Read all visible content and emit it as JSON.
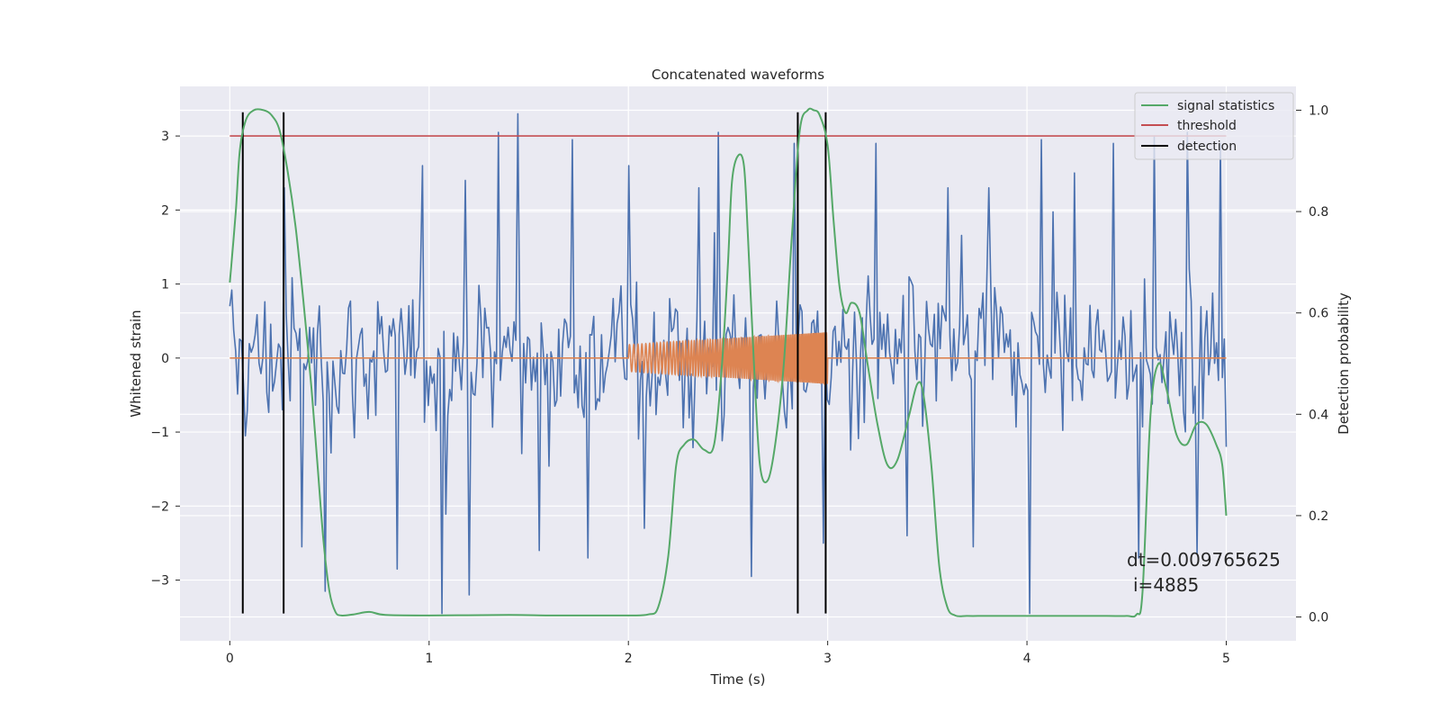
{
  "chart_data": {
    "type": "line",
    "title": "Concatenated waveforms",
    "xlabel": "Time (s)",
    "ylabel": "Whitened strain",
    "y2label": "Detection probability",
    "xlim": [
      -0.25,
      5.35
    ],
    "ylim": [
      -3.82,
      3.67
    ],
    "y2lim": [
      -0.047,
      1.047
    ],
    "grid": true,
    "legend_position": "upper right",
    "x_ticks": [
      0,
      1,
      2,
      3,
      4,
      5
    ],
    "y_ticks": [
      -3,
      -2,
      -1,
      0,
      1,
      2,
      3
    ],
    "y2_ticks": [
      0.0,
      0.2,
      0.4,
      0.6,
      0.8,
      1.0
    ],
    "series": [
      {
        "name": "",
        "kind": "whitened strain noise",
        "axis": "left",
        "color": "#4c72b0",
        "x_range": [
          0,
          5
        ],
        "dt": 0.009765625,
        "typical_amplitude": 0.75,
        "peaks": [
          {
            "x": 0.0,
            "y": 0.7
          },
          {
            "x": 0.08,
            "y": 2.95
          },
          {
            "x": 0.08,
            "y": -1.05
          },
          {
            "x": 0.27,
            "y": 2.3
          },
          {
            "x": 0.36,
            "y": -2.55
          },
          {
            "x": 0.48,
            "y": -3.15
          },
          {
            "x": 0.84,
            "y": 2.95
          },
          {
            "x": 0.84,
            "y": -2.85
          },
          {
            "x": 0.97,
            "y": 2.6
          },
          {
            "x": 1.06,
            "y": -3.45
          },
          {
            "x": 1.18,
            "y": 2.4
          },
          {
            "x": 1.2,
            "y": -3.2
          },
          {
            "x": 1.35,
            "y": 3.05
          },
          {
            "x": 1.45,
            "y": 3.3
          },
          {
            "x": 1.55,
            "y": -2.6
          },
          {
            "x": 1.72,
            "y": 2.95
          },
          {
            "x": 1.8,
            "y": -2.7
          },
          {
            "x": 2.0,
            "y": 2.6
          },
          {
            "x": 2.08,
            "y": -2.3
          },
          {
            "x": 2.35,
            "y": 2.3
          },
          {
            "x": 2.45,
            "y": 3.05
          },
          {
            "x": 2.62,
            "y": -2.95
          },
          {
            "x": 2.83,
            "y": 2.9
          },
          {
            "x": 2.98,
            "y": -2.5
          },
          {
            "x": 3.24,
            "y": 2.9
          },
          {
            "x": 3.4,
            "y": -2.4
          },
          {
            "x": 3.6,
            "y": 2.3
          },
          {
            "x": 3.73,
            "y": -2.55
          },
          {
            "x": 3.81,
            "y": 2.3
          },
          {
            "x": 4.01,
            "y": -3.45
          },
          {
            "x": 4.07,
            "y": 2.95
          },
          {
            "x": 4.24,
            "y": 2.5
          },
          {
            "x": 4.43,
            "y": 2.9
          },
          {
            "x": 4.56,
            "y": -2.7
          },
          {
            "x": 4.64,
            "y": 3.0
          },
          {
            "x": 4.8,
            "y": 3.05
          },
          {
            "x": 4.85,
            "y": -2.65
          },
          {
            "x": 4.97,
            "y": 2.9
          },
          {
            "x": 5.0,
            "y": -1.2
          }
        ]
      },
      {
        "name": "",
        "kind": "injected chirp signal",
        "axis": "left",
        "color": "#dd8452",
        "x_range": [
          0,
          5
        ],
        "chirp_start": 2.0,
        "chirp_end": 3.0,
        "amplitude_start": 0.18,
        "amplitude_end": 0.35
      },
      {
        "name": "signal statistics",
        "axis": "right",
        "color": "#55a868",
        "x": [
          0.0,
          0.03,
          0.05,
          0.08,
          0.12,
          0.17,
          0.21,
          0.25,
          0.29,
          0.33,
          0.37,
          0.41,
          0.44,
          0.47,
          0.5,
          0.53,
          0.56,
          0.62,
          0.7,
          0.78,
          1.0,
          1.4,
          1.6,
          1.8,
          2.0,
          2.1,
          2.15,
          2.2,
          2.24,
          2.28,
          2.33,
          2.38,
          2.43,
          2.47,
          2.5,
          2.52,
          2.55,
          2.58,
          2.6,
          2.63,
          2.66,
          2.7,
          2.74,
          2.78,
          2.82,
          2.86,
          2.9,
          2.93,
          2.96,
          3.0,
          3.03,
          3.06,
          3.09,
          3.12,
          3.16,
          3.2,
          3.25,
          3.3,
          3.35,
          3.41,
          3.45,
          3.48,
          3.52,
          3.56,
          3.6,
          3.64,
          3.7,
          3.8,
          4.0,
          4.2,
          4.4,
          4.5,
          4.55,
          4.58,
          4.62,
          4.66,
          4.7,
          4.75,
          4.8,
          4.85,
          4.9,
          4.95,
          4.98,
          5.0
        ],
        "y": [
          0.66,
          0.8,
          0.92,
          0.98,
          1.0,
          1.0,
          0.99,
          0.96,
          0.88,
          0.77,
          0.62,
          0.45,
          0.3,
          0.15,
          0.05,
          0.01,
          0.003,
          0.005,
          0.01,
          0.004,
          0.003,
          0.004,
          0.003,
          0.003,
          0.003,
          0.005,
          0.02,
          0.12,
          0.3,
          0.34,
          0.35,
          0.33,
          0.34,
          0.5,
          0.7,
          0.86,
          0.91,
          0.89,
          0.75,
          0.5,
          0.3,
          0.27,
          0.35,
          0.5,
          0.75,
          0.96,
          1.0,
          1.0,
          0.99,
          0.93,
          0.78,
          0.65,
          0.6,
          0.62,
          0.6,
          0.5,
          0.38,
          0.3,
          0.31,
          0.4,
          0.46,
          0.44,
          0.3,
          0.1,
          0.02,
          0.003,
          0.002,
          0.002,
          0.002,
          0.002,
          0.002,
          0.002,
          0.005,
          0.05,
          0.4,
          0.5,
          0.45,
          0.36,
          0.34,
          0.38,
          0.38,
          0.34,
          0.3,
          0.2
        ]
      },
      {
        "name": "threshold",
        "axis": "left",
        "color": "#c44e52",
        "x": [
          0,
          5
        ],
        "y": [
          3,
          3
        ]
      },
      {
        "name": "detection",
        "axis": "left",
        "color": "#000000",
        "x": [
          0.065,
          0.27,
          2.85,
          2.99
        ],
        "ymin": -3.45,
        "ymax": 3.32
      }
    ],
    "annotations": [
      "dt=0.009765625",
      "i=4885"
    ]
  }
}
